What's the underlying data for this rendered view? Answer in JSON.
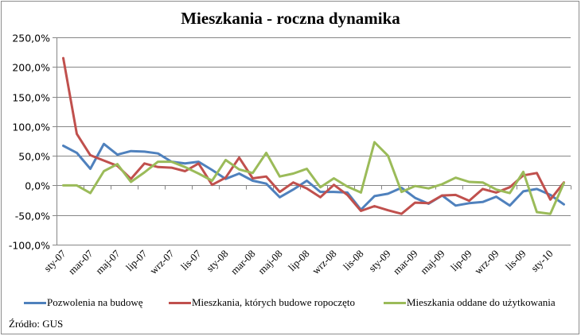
{
  "chart_data": {
    "type": "line",
    "title": "Mieszkania - roczna dynamika",
    "xlabel": "",
    "ylabel": "",
    "ylim": [
      -100,
      250
    ],
    "yticks": [
      "250,0%",
      "200,0%",
      "150,0%",
      "100,0%",
      "50,0%",
      "0,0%",
      "-50,0%",
      "-100,0%"
    ],
    "ytick_values": [
      250,
      200,
      150,
      100,
      50,
      0,
      -50,
      -100
    ],
    "grid": true,
    "legend_position": "bottom",
    "x": [
      "sty-07",
      "lut-07",
      "mar-07",
      "kwi-07",
      "maj-07",
      "cze-07",
      "lip-07",
      "sie-07",
      "wrz-07",
      "paź-07",
      "lis-07",
      "gru-07",
      "sty-08",
      "lut-08",
      "mar-08",
      "kwi-08",
      "maj-08",
      "cze-08",
      "lip-08",
      "sie-08",
      "wrz-08",
      "paź-08",
      "lis-08",
      "gru-08",
      "sty-09",
      "lut-09",
      "mar-09",
      "kwi-09",
      "maj-09",
      "cze-09",
      "lip-09",
      "sie-09",
      "wrz-09",
      "paź-09",
      "lis-09",
      "gru-09",
      "sty-10",
      "lut-10"
    ],
    "xtick_labels": [
      "sty-07",
      "mar-07",
      "maj-07",
      "lip-07",
      "wrz-07",
      "lis-07",
      "sty-08",
      "mar-08",
      "maj-08",
      "lip-08",
      "wrz-08",
      "lis-08",
      "sty-09",
      "mar-09",
      "maj-09",
      "lip-09",
      "wrz-09",
      "lis-09",
      "sty-10"
    ],
    "series": [
      {
        "name": "Pozwolenia na budowę",
        "color": "#4f81bd",
        "values": [
          67,
          55,
          28,
          70,
          52,
          58,
          57,
          54,
          40,
          37,
          40,
          26,
          11,
          20,
          8,
          3,
          -20,
          -7,
          8,
          -11,
          -11,
          -12,
          -41,
          -18,
          -14,
          -4,
          -21,
          -31,
          -17,
          -34,
          -30,
          -28,
          -19,
          -34,
          -10,
          -6,
          -16,
          -32
        ]
      },
      {
        "name": "Mieszkania, których budowe ropoczęto",
        "color": "#c0504d",
        "values": [
          215,
          87,
          51,
          42,
          33,
          11,
          37,
          31,
          30,
          24,
          37,
          1,
          13,
          47,
          12,
          15,
          -11,
          5,
          -5,
          -20,
          1,
          -16,
          -43,
          -35,
          -42,
          -48,
          -29,
          -30,
          -17,
          -16,
          -26,
          -6,
          -12,
          -3,
          17,
          21,
          -24,
          5
        ]
      },
      {
        "name": "Mieszkania oddane do użytkowania",
        "color": "#9bbb59",
        "values": [
          0,
          0,
          -13,
          24,
          36,
          6,
          22,
          40,
          40,
          31,
          20,
          8,
          43,
          27,
          21,
          55,
          15,
          20,
          28,
          -3,
          12,
          -2,
          -12,
          73,
          50,
          -11,
          -1,
          -5,
          2,
          13,
          6,
          5,
          -7,
          -13,
          23,
          -45,
          -48,
          4
        ]
      }
    ]
  },
  "legend": {
    "items": [
      {
        "label": "Pozwolenia na budowę",
        "color": "#4f81bd"
      },
      {
        "label": "Mieszkania, których budowe ropoczęto",
        "color": "#c0504d"
      },
      {
        "label": "Mieszkania oddane do użytkowania",
        "color": "#9bbb59"
      }
    ]
  },
  "source": "Źródło: GUS"
}
